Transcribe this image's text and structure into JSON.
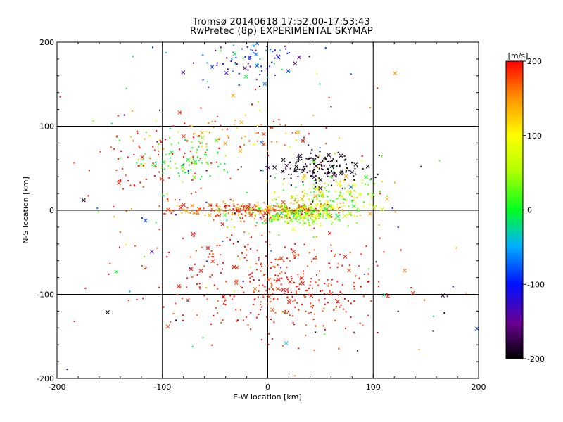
{
  "title_line1": "Tromsø 20140618 17:52:00-17:53:43",
  "title_line2": "RwPretec (8p) EXPERIMENTAL SKYMAP",
  "chart_data": {
    "type": "scatter",
    "xlabel": "E-W location [km]",
    "ylabel": "N-S location [km]",
    "xlim": [
      -200,
      200
    ],
    "ylim": [
      -200,
      200
    ],
    "xticks": [
      "-200",
      "-100",
      "0",
      "100",
      "200"
    ],
    "yticks": [
      "-200",
      "-100",
      "0",
      "100",
      "200"
    ],
    "grid": true,
    "grid_values": [
      -100,
      0,
      100
    ],
    "colorbar": {
      "label": "[m/s]",
      "range": [
        -200,
        200
      ],
      "ticks": [
        "200",
        "100",
        "0",
        "-100",
        "-200"
      ],
      "colormap": "black-purple-blue-cyan-green-yellow-red"
    },
    "markers": [
      "dot (dense radar echoes)",
      "x (sparse echoes)"
    ],
    "velocity_clusters": [
      {
        "x": -10,
        "y": 0,
        "sx": 40,
        "sy": 5,
        "v": 170,
        "spread": 40,
        "count": 260
      },
      {
        "x": 25,
        "y": -5,
        "sx": 25,
        "sy": 6,
        "v": 40,
        "spread": 60,
        "count": 200
      },
      {
        "x": 55,
        "y": 15,
        "sx": 25,
        "sy": 15,
        "v": 70,
        "spread": 80,
        "count": 220
      },
      {
        "x": 50,
        "y": 50,
        "sx": 20,
        "sy": 10,
        "v": -190,
        "spread": 20,
        "count": 160
      },
      {
        "x": 20,
        "y": -100,
        "sx": 45,
        "sy": 25,
        "v": 190,
        "spread": 25,
        "count": 280
      },
      {
        "x": -20,
        "y": -60,
        "sx": 60,
        "sy": 30,
        "v": 190,
        "spread": 25,
        "count": 120
      },
      {
        "x": -80,
        "y": 60,
        "sx": 25,
        "sy": 15,
        "v": 20,
        "spread": 40,
        "count": 90
      },
      {
        "x": -110,
        "y": 50,
        "sx": 30,
        "sy": 20,
        "v": 190,
        "spread": 20,
        "count": 70
      },
      {
        "x": -20,
        "y": 180,
        "sx": 30,
        "sy": 18,
        "v": -80,
        "spread": 90,
        "count": 100
      },
      {
        "x": -30,
        "y": 90,
        "sx": 50,
        "sy": 15,
        "v": 160,
        "spread": 70,
        "count": 100
      },
      {
        "x": 0,
        "y": 0,
        "sx": 120,
        "sy": 110,
        "v": 0,
        "spread": 220,
        "count": 160
      }
    ]
  }
}
